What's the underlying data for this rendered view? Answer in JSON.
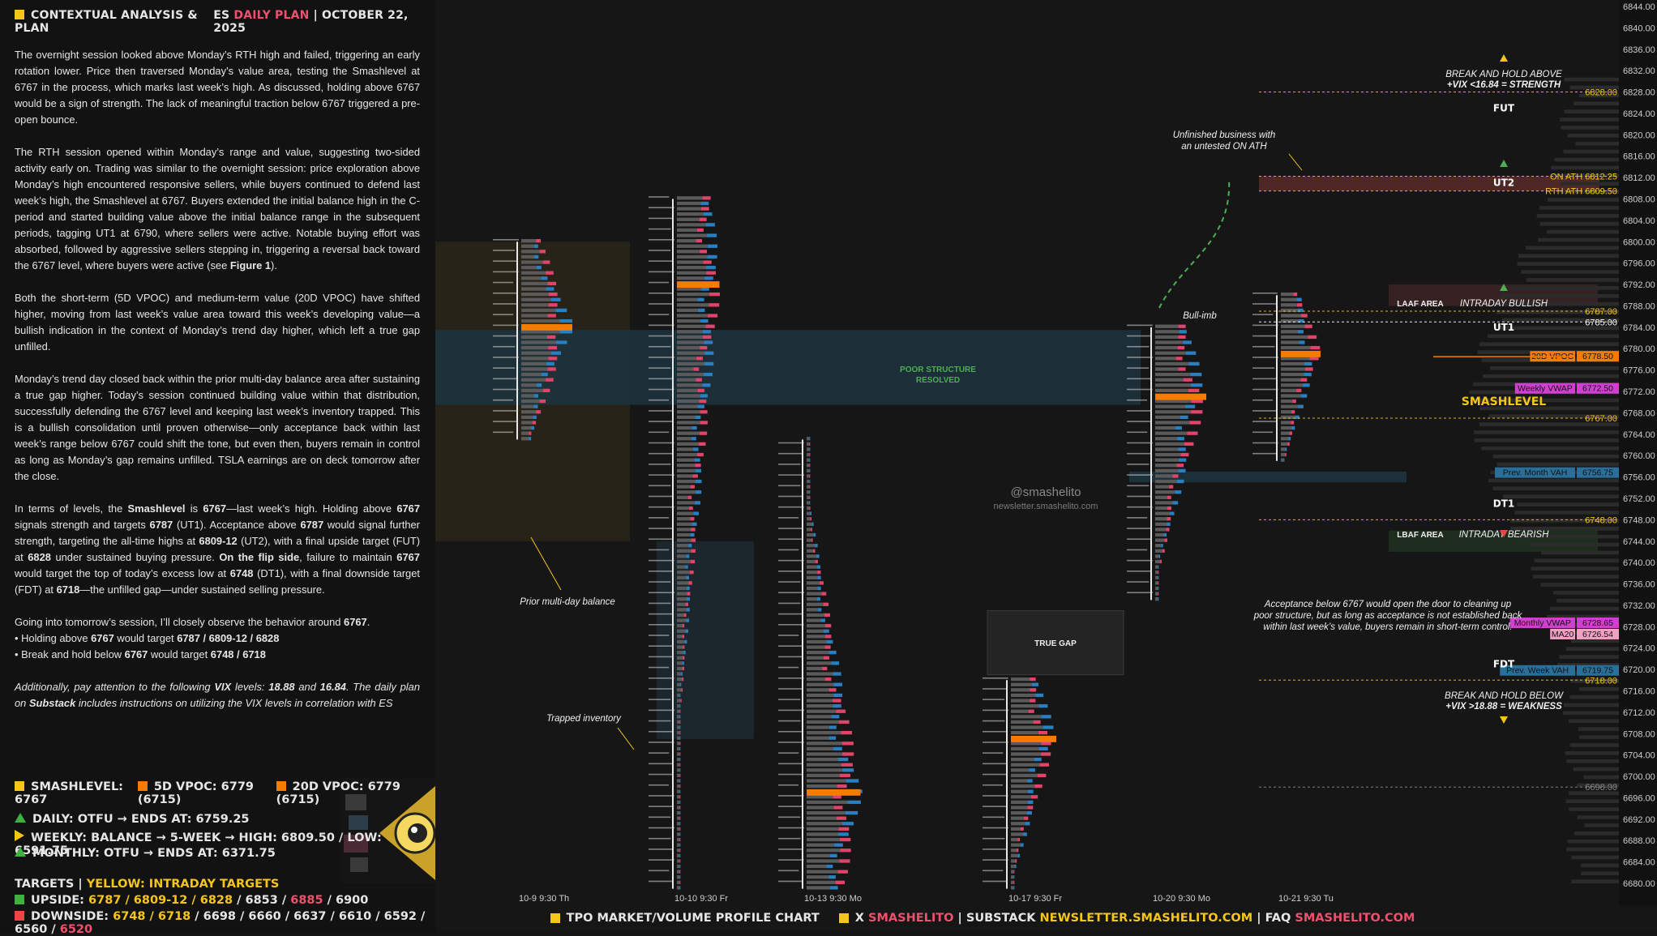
{
  "header": {
    "left_title": "CONTEXTUAL ANALYSIS & PLAN",
    "symbol": "ES",
    "plan_label": "DAILY PLAN",
    "sep": "|",
    "date": "OCTOBER 22, 2025"
  },
  "paragraphs": {
    "p1": "The overnight session looked above Monday’s RTH high and failed, triggering an early rotation lower. Price then traversed Monday’s value area, testing the Smashlevel at 6767 in the process, which marks last week’s high. As discussed, holding above 6767 would be a sign of strength. The lack of meaningful traction below 6767 triggered a pre-open bounce.",
    "p2": "The RTH session opened within Monday’s range and value, suggesting two-sided activity early on. Trading was similar to the overnight session: price exploration above Monday’s high encountered responsive sellers, while buyers continued to defend last week’s high, the Smashlevel at 6767. Buyers extended the initial balance high in the C-period and started building value above the initial balance range in the subsequent periods, tagging UT1 at 6790, where sellers were active. Notable buying effort was absorbed, followed by aggressive sellers stepping in, triggering a reversal back toward the 6767 level, where buyers were active (see",
    "p2_bold": "Figure 1",
    "p2_end": ").",
    "p3": "Both the short-term (5D VPOC) and medium-term value (20D VPOC) have shifted higher, moving from last week’s value area toward this week’s developing value—a bullish indication in the context of Monday’s trend day higher, which left a true gap unfilled.",
    "p4": "Monday’s trend day closed back within the prior multi-day balance area after sustaining a true gap higher. Today’s session continued building value within that distribution, successfully defending the 6767 level and keeping last week’s inventory trapped. This is a bullish consolidation until proven otherwise—only acceptance back within last week’s range below 6767 could shift the tone, but even then, buyers remain in control as long as Monday’s gap remains unfilled. TSLA earnings are on deck tomorrow after the close.",
    "p5_a": "In terms of levels, the",
    "p5_b": "Smashlevel",
    "p5_c": "is",
    "p5_d": "6767",
    "p5_e": "—last week’s high. Holding above",
    "p5_f": "6767",
    "p5_g": "signals strength and targets",
    "p5_h": "6787",
    "p5_i": "(UT1). Acceptance above",
    "p5_j": "6787",
    "p5_k": "would signal further strength, targeting the all-time highs at",
    "p5_l": "6809-12",
    "p5_m": "(UT2), with a final upside target (FUT) at",
    "p5_n": "6828",
    "p5_o": "under sustained buying pressure.",
    "p5_p": "On the flip side",
    "p5_q": ", failure to maintain",
    "p5_r": "6767",
    "p5_s": "would target the top of today’s excess low at",
    "p5_t": "6748",
    "p5_u": "(DT1), with a final downside target (FDT) at",
    "p5_v": "6718",
    "p5_w": "—the unfilled gap—under sustained selling pressure.",
    "p6_a": "Going into tomorrow’s session, I’ll closely observe the behavior around",
    "p6_b": "6767",
    "p6_c": ".",
    "b1_a": "• Holding above",
    "b1_b": "6767",
    "b1_c": "would target",
    "b1_d": "6787 / 6809-12 / 6828",
    "b2_a": "• Break and hold below",
    "b2_b": "6767",
    "b2_c": "would target",
    "b2_d": "6748 / 6718",
    "p7_a": "Additionally, pay attention to the following",
    "p7_b": "VIX",
    "p7_c": "levels:",
    "p7_d": "18.88",
    "p7_e": "and",
    "p7_f": "16.84",
    "p7_g": ". The daily plan on",
    "p7_h": "Substack",
    "p7_i": "includes instructions on utilizing the VIX levels in correlation with ES"
  },
  "legend": {
    "smash": "SMASHLEVEL: 6767",
    "vpoc5": "5D VPOC: 6779 (6715)",
    "vpoc20": "20D VPOC: 6779 (6715)",
    "smash_color": "#f5c518",
    "vpoc5_color": "#f57c00",
    "vpoc20_color": "#f57c00"
  },
  "bias": {
    "daily": "DAILY: OTFU → ENDS AT: 6759.25",
    "weekly": "WEEKLY: BALANCE → 5-WEEK → HIGH: 6809.50 / LOW: 6591.75",
    "monthly": "MONTHLY: OTFU → ENDS AT: 6371.75"
  },
  "targets": {
    "title": "TARGETS",
    "sep": "|",
    "subtitle": "YELLOW: INTRADAY TARGETS",
    "upside_label": "UPSIDE:",
    "upside_yellow": "6787 / 6809-12 / 6828",
    "upside_white": " / 6853 / ",
    "upside_pink": "6885",
    "upside_end": " / 6900",
    "downside_label": "DOWNSIDE:",
    "downside_yellow": "6748 / 6718",
    "downside_white": " / 6698 / 6660 / 6637 / 6610 / 6592 / 6560 / ",
    "downside_pink": "6520"
  },
  "footer": {
    "chart_label": "TPO MARKET/VOLUME PROFILE CHART",
    "x": "X",
    "x_handle": "SMASHELITO",
    "sep1": "|",
    "substack": "SUBSTACK",
    "substack_url": "NEWSLETTER.SMASHELITO.COM",
    "sep2": "|",
    "faq": "FAQ",
    "faq_handle": "SMASHELITO.COM"
  },
  "chart_data": {
    "type": "tpo_profile",
    "y_axis": {
      "min": 6680,
      "max": 6844,
      "step": 4,
      "tick_labels": [
        "6844.00",
        "6840.00",
        "6836.00",
        "6832.00",
        "6828.00",
        "6824.00",
        "6820.00",
        "6816.00",
        "6812.00",
        "6808.00",
        "6804.00",
        "6800.00",
        "6796.00",
        "6792.00",
        "6788.00",
        "6784.00",
        "6780.00",
        "6776.00",
        "6772.00",
        "6768.00",
        "6764.00",
        "6760.00",
        "6756.00",
        "6752.00",
        "6748.00",
        "6744.00",
        "6740.00",
        "6736.00",
        "6732.00",
        "6728.00",
        "6724.00",
        "6720.00",
        "6716.00",
        "6712.00",
        "6708.00",
        "6704.00",
        "6700.00",
        "6696.00",
        "6692.00",
        "6688.00",
        "6684.00",
        "6680.00"
      ]
    },
    "sessions": [
      {
        "label": "10-9  9:30 Th",
        "low": 6763,
        "high": 6800,
        "vpoc": 6784
      },
      {
        "label": "10-10  9:30 Fr",
        "low": 6679,
        "high": 6808,
        "vpoc": 6792
      },
      {
        "label": "10-13  9:30 Mo",
        "low": 6679,
        "high": 6763,
        "vpoc": 6697
      },
      {
        "label": "10-17  9:30 Fr",
        "low": 6679,
        "high": 6718,
        "vpoc": 6707
      },
      {
        "label": "10-20  9:30 Mo",
        "low": 6733,
        "high": 6784,
        "vpoc": 6771
      },
      {
        "label": "10-21  9:30 Tu",
        "low": 6759,
        "high": 6790,
        "vpoc": 6779
      }
    ],
    "level_lines": [
      {
        "label": "6828.00",
        "value": 6828,
        "color": "#f5c518"
      },
      {
        "label": "ON ATH  6812.25",
        "value": 6812.25,
        "color": "#f5c518"
      },
      {
        "label": "RTH ATH  6809.50",
        "value": 6809.5,
        "color": "#f5c518"
      },
      {
        "label": "6787.00",
        "value": 6787,
        "color": "#f5c518"
      },
      {
        "label": "6785.00",
        "value": 6785,
        "color": "#ffffff"
      },
      {
        "label": "6767.00",
        "value": 6767,
        "color": "#f5c518"
      },
      {
        "label": "6748.00",
        "value": 6748,
        "color": "#f5c518"
      },
      {
        "label": "6718.00",
        "value": 6718,
        "color": "#f5c518"
      },
      {
        "label": "6698.00",
        "value": 6698,
        "color": "#888888"
      }
    ],
    "tagged_levels": [
      {
        "label": "20D VPOC",
        "price": "6778.50",
        "value": 6778.5,
        "color": "#f57c00"
      },
      {
        "label": "Weekly VWAP",
        "price": "6772.50",
        "value": 6772.5,
        "color": "#d040d0"
      },
      {
        "label": "Prev. Month VAH",
        "price": "6756.75",
        "value": 6756.75,
        "color": "#2a6f9a"
      },
      {
        "label": "Monthly VWAP",
        "price": "6728.65",
        "value": 6728.65,
        "color": "#d040d0"
      },
      {
        "label": "MA20",
        "price": "6726.54",
        "value": 6726.54,
        "color": "#f0a0c0"
      },
      {
        "label": "Prev. Week VAH",
        "price": "6719.75",
        "value": 6719.75,
        "color": "#2a6f9a"
      }
    ],
    "target_labels": [
      {
        "label": "FUT",
        "value": 6825
      },
      {
        "label": "UT2",
        "value": 6811
      },
      {
        "label": "UT1",
        "value": 6784
      },
      {
        "label": "SMASHLEVEL",
        "value": 6770
      },
      {
        "label": "DT1",
        "value": 6751
      },
      {
        "label": "FDT",
        "value": 6721
      }
    ],
    "annotations": {
      "break_above_l1": "BREAK AND HOLD ABOVE",
      "break_above_l2": "+VIX <16.84 = STRENGTH",
      "break_below_l1": "BREAK AND HOLD BELOW",
      "break_below_l2": "+VIX >18.88 = WEAKNESS",
      "unfinished_l1": "Unfinished business with",
      "unfinished_l2": "an untested ON ATH",
      "bull_imb": "Bull-imb",
      "laaf": "LAAF AREA",
      "intraday_bullish": "INTRADAY BULLISH",
      "lbaf": "LBAF AREA",
      "intraday_bearish": "INTRADAY BEARISH",
      "poor_l1": "POOR STRUCTURE",
      "poor_l2": "RESOLVED",
      "true_gap": "TRUE GAP",
      "handle": "@smashelito",
      "newsletter": "newsletter.smashelito.com",
      "prior_balance": "Prior multi-day balance",
      "trapped": "Trapped inventory",
      "accept_l1": "Acceptance below 6767 would open the door to cleaning up",
      "accept_l2": "poor structure, but as long as acceptance is not established back",
      "accept_l3": "within last week’s value, buyers remain in short-term control."
    },
    "colors": {
      "buy_volume": "#2a7fc0",
      "sell_volume": "#e0446a",
      "tpo_letters": "#d8d8d8",
      "vpoc_bar": "#f57c00",
      "target_line": "#f5c518",
      "ut2_zone": "#5a2a2a"
    }
  }
}
